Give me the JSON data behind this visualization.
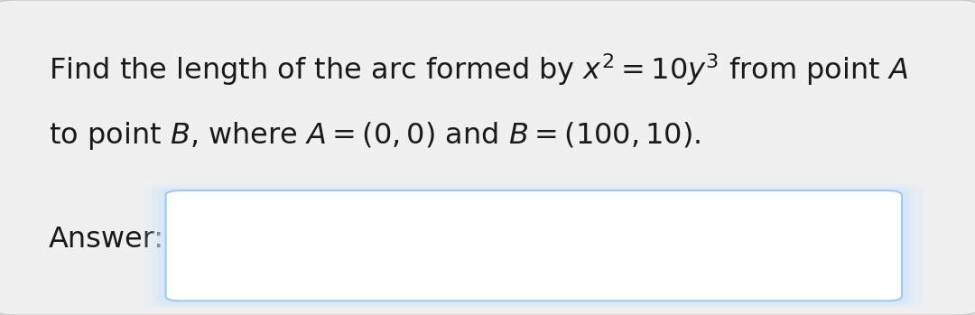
{
  "background_color": "#dcdcdc",
  "card_color": "#f0f0f0",
  "answer_box_color": "#ffffff",
  "answer_box_border_color": "#a0c8f0",
  "answer_box_glow_color": "#c8e4ff",
  "line1": "Find the length of the arc formed by $x^2 = 10y^3$ from point $A$",
  "line2": "to point $B$, where $A = (0, 0)$ and $B = (100, 10)$.",
  "answer_label": "Answer:",
  "text_color": "#1a1a1a",
  "font_size": 23,
  "answer_font_size": 23
}
